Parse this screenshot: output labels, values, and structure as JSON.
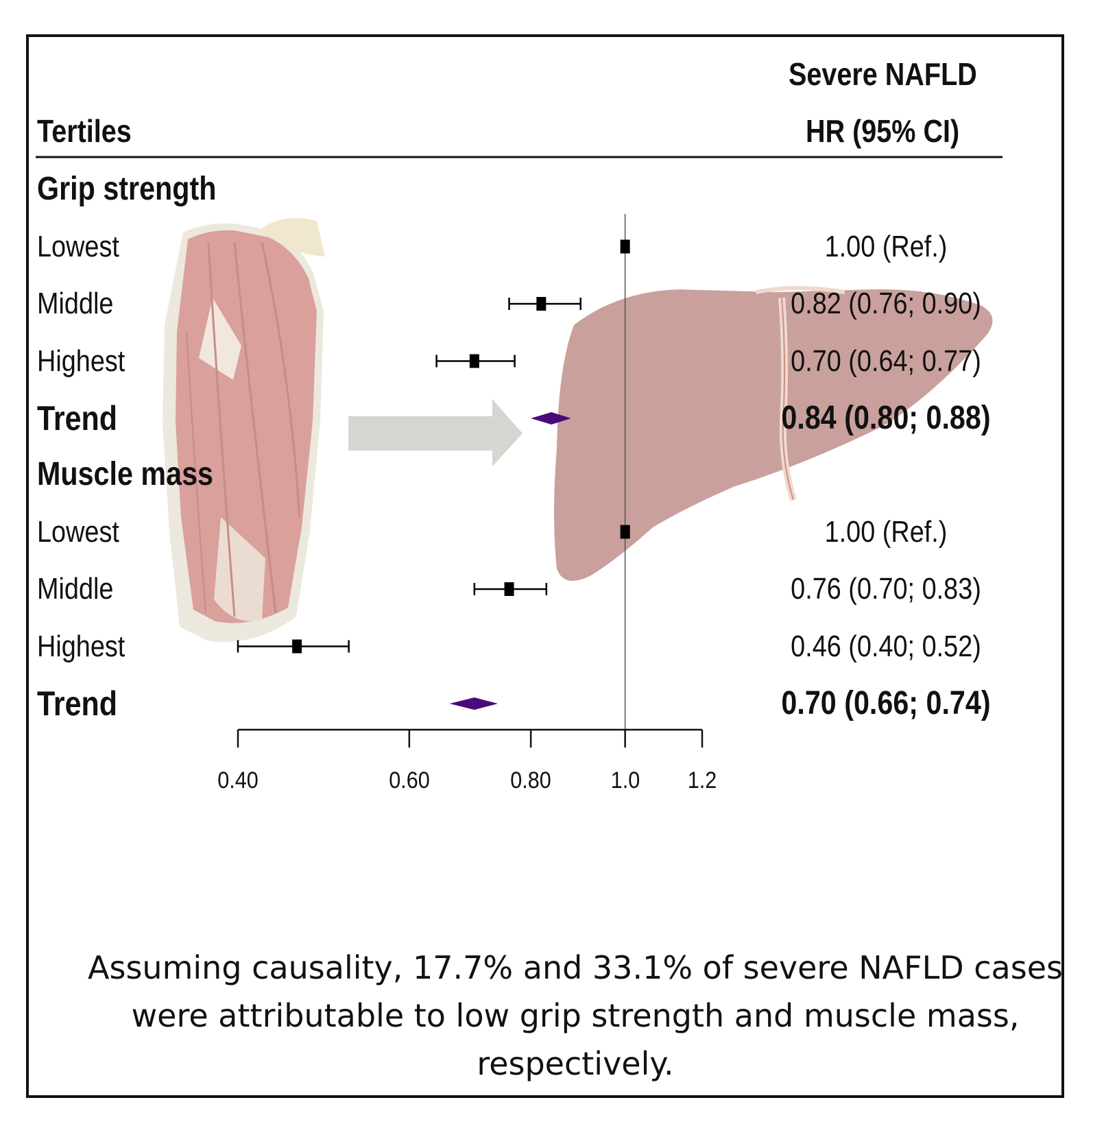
{
  "header": {
    "col_left": "Tertiles",
    "col_right_line1": "Severe NAFLD",
    "col_right_line2": "HR (95% CI)"
  },
  "caption": "Assuming causality, 17.7% and 33.1% of severe NAFLD cases were attributable to low grip strength and muscle mass, respectively.",
  "chart_data": {
    "type": "forest",
    "xscale": "log",
    "xlim": [
      0.4,
      1.2
    ],
    "reference_line": 1.0,
    "xticks": [
      0.4,
      0.6,
      0.8,
      1.0,
      1.2
    ],
    "xtick_labels": [
      "0.40",
      "0.60",
      "0.80",
      "1.0",
      "1.2"
    ],
    "groups": [
      {
        "name": "Grip strength",
        "rows": [
          {
            "label": "Lowest",
            "hr": 1.0,
            "lo": null,
            "hi": null,
            "text": "1.00 (Ref.)",
            "kind": "ref"
          },
          {
            "label": "Middle",
            "hr": 0.82,
            "lo": 0.76,
            "hi": 0.9,
            "text": "0.82 (0.76; 0.90)",
            "kind": "point"
          },
          {
            "label": "Highest",
            "hr": 0.7,
            "lo": 0.64,
            "hi": 0.77,
            "text": "0.70 (0.64; 0.77)",
            "kind": "point"
          },
          {
            "label": "Trend",
            "hr": 0.84,
            "lo": 0.8,
            "hi": 0.88,
            "text": "0.84 (0.80; 0.88)",
            "kind": "diamond"
          }
        ]
      },
      {
        "name": "Muscle mass",
        "rows": [
          {
            "label": "Lowest",
            "hr": 1.0,
            "lo": null,
            "hi": null,
            "text": "1.00 (Ref.)",
            "kind": "ref"
          },
          {
            "label": "Middle",
            "hr": 0.76,
            "lo": 0.7,
            "hi": 0.83,
            "text": "0.76 (0.70; 0.83)",
            "kind": "point"
          },
          {
            "label": "Highest",
            "hr": 0.46,
            "lo": 0.4,
            "hi": 0.52,
            "text": "0.46 (0.40; 0.52)",
            "kind": "point"
          },
          {
            "label": "Trend",
            "hr": 0.7,
            "lo": 0.66,
            "hi": 0.74,
            "text": "0.70 (0.66; 0.74)",
            "kind": "diamond"
          }
        ]
      }
    ],
    "colors": {
      "point": "#000000",
      "diamond": "#4b0a7a",
      "muscle": "#d9a09c",
      "liver": "#c9a09c",
      "arrow": "#d4d6d0"
    }
  }
}
